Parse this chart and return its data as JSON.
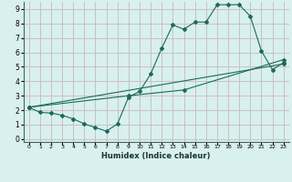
{
  "xlabel": "Humidex (Indice chaleur)",
  "bg_color": "#d8f0ee",
  "grid_color": "#c8b8c0",
  "line_color": "#1a6b5a",
  "xlim": [
    -0.5,
    23.5
  ],
  "ylim": [
    -0.2,
    9.5
  ],
  "xticks": [
    0,
    1,
    2,
    3,
    4,
    5,
    6,
    7,
    8,
    9,
    10,
    11,
    12,
    13,
    14,
    15,
    16,
    17,
    18,
    19,
    20,
    21,
    22,
    23
  ],
  "yticks": [
    0,
    1,
    2,
    3,
    4,
    5,
    6,
    7,
    8,
    9
  ],
  "line1_x": [
    0,
    1,
    2,
    3,
    4,
    5,
    6,
    7,
    8,
    9,
    10,
    11,
    12,
    13,
    14,
    15,
    16,
    17,
    18,
    19,
    20,
    21,
    22,
    23
  ],
  "line1_y": [
    2.2,
    1.85,
    1.8,
    1.65,
    1.4,
    1.05,
    0.8,
    0.55,
    1.05,
    2.9,
    3.3,
    4.5,
    6.3,
    7.9,
    7.6,
    8.1,
    8.1,
    9.3,
    9.3,
    9.3,
    8.5,
    6.1,
    4.8,
    5.3
  ],
  "line2_x": [
    0,
    23
  ],
  "line2_y": [
    2.2,
    5.2
  ],
  "line3_x": [
    0,
    9,
    14,
    23
  ],
  "line3_y": [
    2.2,
    3.0,
    3.4,
    5.5
  ]
}
